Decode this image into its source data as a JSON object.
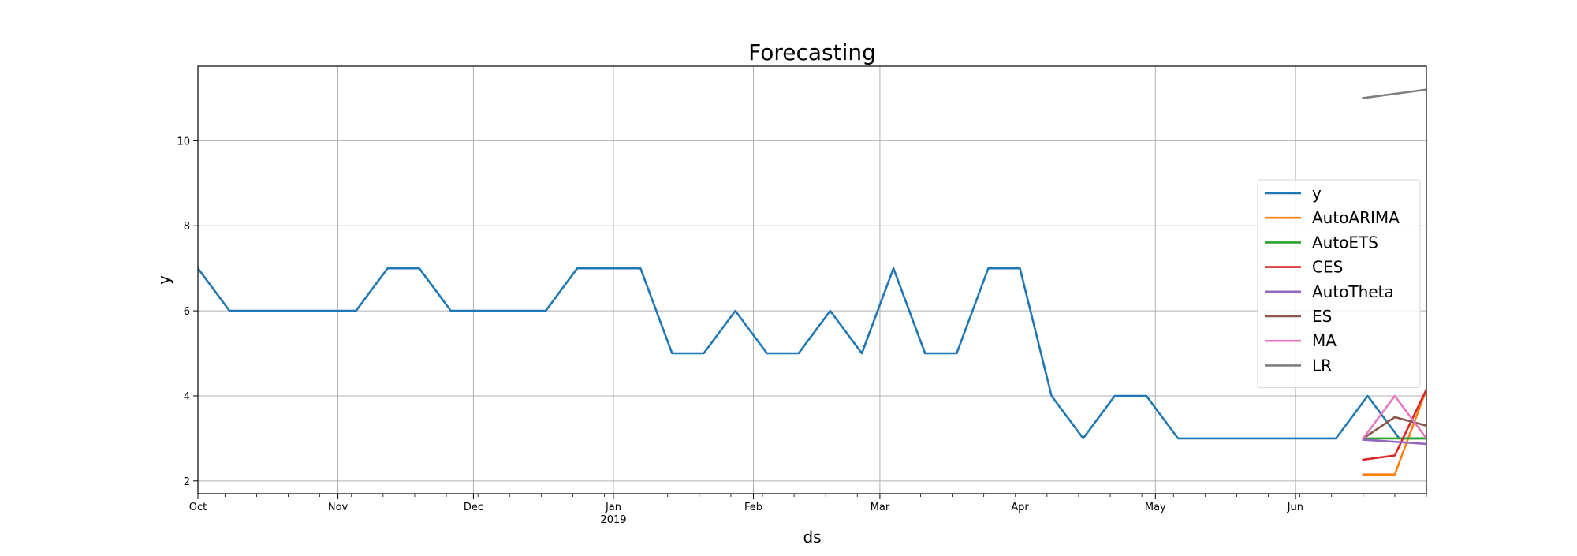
{
  "chart_data": {
    "type": "line",
    "title": "Forecasting",
    "xlabel": "ds",
    "ylabel": "y",
    "x_axis": {
      "type": "date",
      "range": [
        "2018-10-01",
        "2019-06-30"
      ],
      "major_ticks": [
        {
          "date": "2018-10-01",
          "label": "Oct",
          "sublabel": ""
        },
        {
          "date": "2018-11-01",
          "label": "Nov",
          "sublabel": ""
        },
        {
          "date": "2018-12-01",
          "label": "Dec",
          "sublabel": ""
        },
        {
          "date": "2019-01-01",
          "label": "Jan",
          "sublabel": "2019"
        },
        {
          "date": "2019-02-01",
          "label": "Feb",
          "sublabel": ""
        },
        {
          "date": "2019-03-01",
          "label": "Mar",
          "sublabel": ""
        },
        {
          "date": "2019-04-01",
          "label": "Apr",
          "sublabel": ""
        },
        {
          "date": "2019-05-01",
          "label": "May",
          "sublabel": ""
        },
        {
          "date": "2019-06-01",
          "label": "Jun",
          "sublabel": ""
        }
      ],
      "minor_ticks": [
        "2018-10-07",
        "2018-10-14",
        "2018-10-21",
        "2018-10-28",
        "2018-11-04",
        "2018-11-11",
        "2018-11-18",
        "2018-11-25",
        "2018-12-02",
        "2018-12-09",
        "2018-12-16",
        "2018-12-23",
        "2018-12-30",
        "2019-01-06",
        "2019-01-13",
        "2019-01-20",
        "2019-01-27",
        "2019-02-03",
        "2019-02-10",
        "2019-02-17",
        "2019-02-24",
        "2019-03-03",
        "2019-03-10",
        "2019-03-17",
        "2019-03-24",
        "2019-03-31",
        "2019-04-07",
        "2019-04-14",
        "2019-04-21",
        "2019-04-28",
        "2019-05-05",
        "2019-05-12",
        "2019-05-19",
        "2019-05-26",
        "2019-06-02",
        "2019-06-09",
        "2019-06-16",
        "2019-06-23",
        "2019-06-30"
      ]
    },
    "y_axis": {
      "range": [
        1.7,
        11.75
      ],
      "ticks": [
        2,
        4,
        6,
        8,
        10
      ]
    },
    "grid": true,
    "legend_position": "right",
    "series": [
      {
        "name": "y",
        "color": "#1f77b4",
        "points": [
          [
            "2018-10-01",
            7
          ],
          [
            "2018-10-08",
            6
          ],
          [
            "2018-10-15",
            6
          ],
          [
            "2018-10-22",
            6
          ],
          [
            "2018-10-29",
            6
          ],
          [
            "2018-11-05",
            6
          ],
          [
            "2018-11-12",
            7
          ],
          [
            "2018-11-19",
            7
          ],
          [
            "2018-11-26",
            6
          ],
          [
            "2018-12-03",
            6
          ],
          [
            "2018-12-10",
            6
          ],
          [
            "2018-12-17",
            6
          ],
          [
            "2018-12-24",
            7
          ],
          [
            "2018-12-31",
            7
          ],
          [
            "2019-01-07",
            7
          ],
          [
            "2019-01-14",
            5
          ],
          [
            "2019-01-21",
            5
          ],
          [
            "2019-01-28",
            6
          ],
          [
            "2019-02-04",
            5
          ],
          [
            "2019-02-11",
            5
          ],
          [
            "2019-02-18",
            6
          ],
          [
            "2019-02-25",
            5
          ],
          [
            "2019-03-04",
            7
          ],
          [
            "2019-03-11",
            5
          ],
          [
            "2019-03-18",
            5
          ],
          [
            "2019-03-25",
            7
          ],
          [
            "2019-04-01",
            7
          ],
          [
            "2019-04-08",
            4
          ],
          [
            "2019-04-15",
            3
          ],
          [
            "2019-04-22",
            4
          ],
          [
            "2019-04-29",
            4
          ],
          [
            "2019-05-06",
            3
          ],
          [
            "2019-05-13",
            3
          ],
          [
            "2019-05-20",
            3
          ],
          [
            "2019-05-27",
            3
          ],
          [
            "2019-06-03",
            3
          ],
          [
            "2019-06-10",
            3
          ],
          [
            "2019-06-17",
            4
          ],
          [
            "2019-06-24",
            3
          ],
          [
            "2019-07-01",
            3
          ],
          [
            "2019-07-08",
            3
          ]
        ]
      },
      {
        "name": "AutoARIMA",
        "color": "#ff7f0e",
        "points": [
          [
            "2019-06-16",
            2.15
          ],
          [
            "2019-06-23",
            2.15
          ],
          [
            "2019-06-30",
            4.15
          ],
          [
            "2019-07-07",
            4.15
          ]
        ]
      },
      {
        "name": "AutoETS",
        "color": "#2ca02c",
        "points": [
          [
            "2019-06-16",
            3.0
          ],
          [
            "2019-06-23",
            3.0
          ],
          [
            "2019-06-30",
            3.0
          ],
          [
            "2019-07-07",
            3.0
          ]
        ]
      },
      {
        "name": "CES",
        "color": "#d62728",
        "points": [
          [
            "2019-06-16",
            2.5
          ],
          [
            "2019-06-23",
            2.6
          ],
          [
            "2019-06-30",
            4.15
          ],
          [
            "2019-07-07",
            4.25
          ]
        ]
      },
      {
        "name": "AutoTheta",
        "color": "#9467bd",
        "points": [
          [
            "2019-06-16",
            2.97
          ],
          [
            "2019-06-23",
            2.92
          ],
          [
            "2019-06-30",
            2.87
          ],
          [
            "2019-07-07",
            2.82
          ]
        ]
      },
      {
        "name": "ES",
        "color": "#8c564b",
        "points": [
          [
            "2019-06-16",
            3.0
          ],
          [
            "2019-06-23",
            3.5
          ],
          [
            "2019-06-30",
            3.3
          ],
          [
            "2019-07-07",
            3.15
          ]
        ]
      },
      {
        "name": "MA",
        "color": "#e377c2",
        "points": [
          [
            "2019-06-16",
            3.0
          ],
          [
            "2019-06-23",
            4.0
          ],
          [
            "2019-06-30",
            3.0
          ],
          [
            "2019-07-07",
            3.0
          ]
        ]
      },
      {
        "name": "LR",
        "color": "#7f7f7f",
        "points": [
          [
            "2019-06-16",
            11.0
          ],
          [
            "2019-06-23",
            11.1
          ],
          [
            "2019-06-30",
            11.2
          ],
          [
            "2019-07-07",
            11.3
          ]
        ]
      }
    ]
  }
}
